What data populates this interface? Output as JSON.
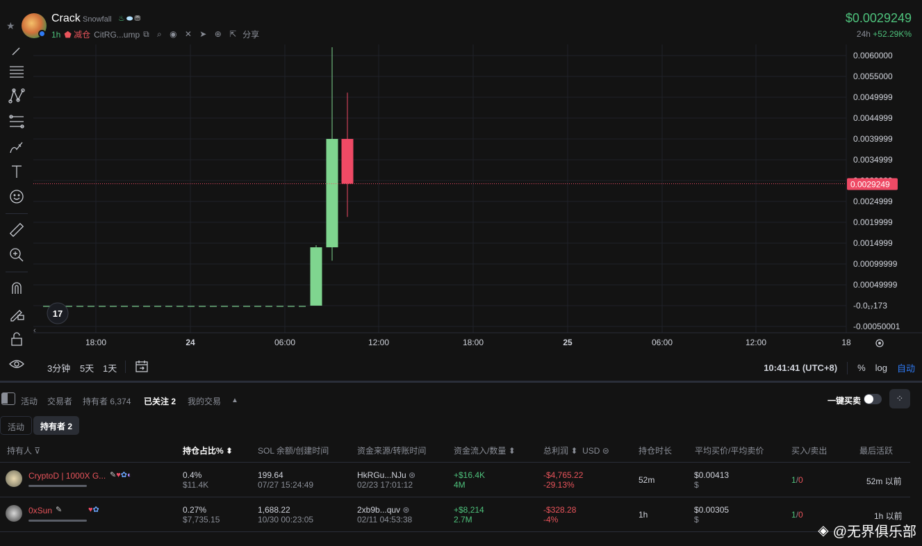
{
  "header": {
    "token_name": "Crack",
    "token_subname": "Snowfall",
    "timeframe": "1h",
    "reduce_label": "减仓",
    "address": "CitRG...ump",
    "share_label": "分享",
    "price": "$0.0029249",
    "change_label": "24h",
    "change_value": "+52.29K%"
  },
  "toolbar": {
    "tools": [
      "line-tool-icon",
      "horizontal-lines-icon",
      "pattern-icon",
      "fib-icon",
      "brush-icon",
      "text-icon",
      "emoji-icon",
      "ruler-icon",
      "zoom-icon",
      "magnet-icon",
      "lock-edit-icon",
      "lock-icon",
      "eye-icon"
    ]
  },
  "chart_data": {
    "type": "candlestick",
    "y_ticks": [
      "0.0060000",
      "0.0055000",
      "0.0049999",
      "0.0044999",
      "0.0039999",
      "0.0034999",
      "0.0029999",
      "0.0024999",
      "0.0019999",
      "0.0014999",
      "0.00099999",
      "0.00049999",
      "-0.0₁₇173",
      "-0.00050001"
    ],
    "ylim": [
      -0.00050001,
      0.006
    ],
    "x_ticks": [
      {
        "label": "18:00",
        "bold": false
      },
      {
        "label": "24",
        "bold": true
      },
      {
        "label": "06:00",
        "bold": false
      },
      {
        "label": "12:00",
        "bold": false
      },
      {
        "label": "18:00",
        "bold": false
      },
      {
        "label": "25",
        "bold": true
      },
      {
        "label": "06:00",
        "bold": false
      },
      {
        "label": "12:00",
        "bold": false
      },
      {
        "label": "18",
        "bold": false
      }
    ],
    "current_price_label": "0.0029249",
    "current_price": 0.0029249,
    "candles": [
      {
        "open": 0.0,
        "high": 0.00145,
        "low": 0.0,
        "close": 0.0014
      },
      {
        "open": 0.0014,
        "high": 0.0062,
        "low": 0.00108,
        "close": 0.004
      },
      {
        "open": 0.004,
        "high": 0.00511,
        "low": 0.00213,
        "close": 0.0029249
      }
    ],
    "flat_value": 0.0,
    "colors": {
      "up": "#7fd58f",
      "down": "#ef4a65"
    }
  },
  "chartbar": {
    "timeframes": [
      "3分钟",
      "5天",
      "1天"
    ],
    "clock": "10:41:41 (UTC+8)",
    "percent": "%",
    "log": "log",
    "auto": "自动"
  },
  "tabs": {
    "items": [
      "活动",
      "交易者",
      "持有者 6,374",
      "已关注 2",
      "我的交易"
    ],
    "one_key_buy": "一键买卖"
  },
  "subtabs": [
    "活动",
    "持有者 2"
  ],
  "table": {
    "headers": [
      "持有人",
      "持仓占比%",
      "SOL 余额/创建时间",
      "资金来源/转账时间",
      "资金流入/数量",
      "总利润",
      "USD",
      "持仓时长",
      "平均买价/平均卖价",
      "买入/卖出",
      "最后活跃"
    ],
    "rows": [
      {
        "name": "CryptoD | 1000X G...",
        "pct": "0.4%",
        "pct_usd": "$11.4K",
        "sol": "199.64",
        "created": "07/27 15:24:49",
        "source": "HkRGu...NJu",
        "transfer_time": "02/23 17:01:12",
        "inflow": "+$16.4K",
        "amount": "4M",
        "profit": "-$4,765.22",
        "profit_pct": "-29.13%",
        "hold": "52m",
        "avg_buy": "$0.00413",
        "avg_sell": "$",
        "buys": "1",
        "sells": "0",
        "last_active": "52m 以前"
      },
      {
        "name": "0xSun",
        "pct": "0.27%",
        "pct_usd": "$7,735.15",
        "sol": "1,688.22",
        "created": "10/30 00:23:05",
        "source": "2xb9b...quv",
        "transfer_time": "02/11 04:53:38",
        "inflow": "+$8,214",
        "amount": "2.7M",
        "profit": "-$328.28",
        "profit_pct": "-4%",
        "hold": "1h",
        "avg_buy": "$0.00305",
        "avg_sell": "$",
        "buys": "1",
        "sells": "0",
        "last_active": "1h 以前"
      }
    ]
  },
  "watermark": "@无界俱乐部"
}
